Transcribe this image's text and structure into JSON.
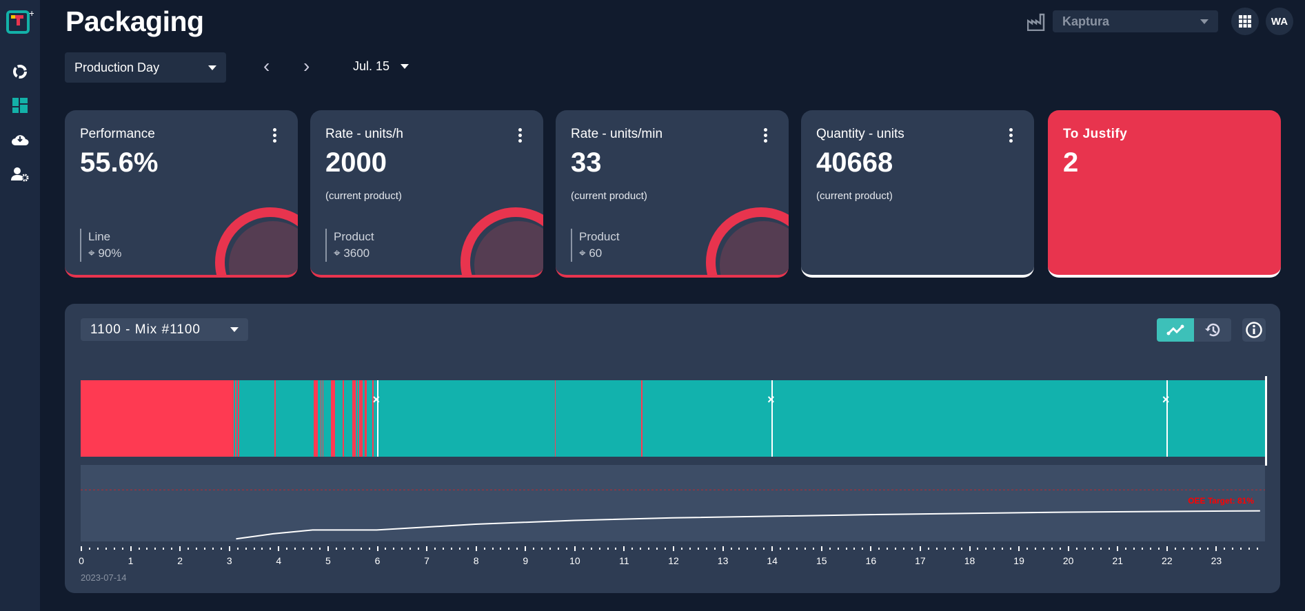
{
  "app": {
    "title": "Packaging",
    "logo": "tracker-plus-logo"
  },
  "sidebar": {
    "items": [
      {
        "icon": "oee-ring-icon",
        "active": false
      },
      {
        "icon": "dashboard-icon",
        "active": true
      },
      {
        "icon": "cloud-download-icon",
        "active": false
      },
      {
        "icon": "user-settings-icon",
        "active": false
      }
    ]
  },
  "toolbar": {
    "period": "Production Day",
    "date": "Jul. 15",
    "prev": "‹",
    "next": "›"
  },
  "header": {
    "site": "Kaptura",
    "avatar": "WA",
    "factory_icon": "factory-icon",
    "apps_icon": "grid-icon"
  },
  "cards": [
    {
      "title": "Performance",
      "value": "55.6%",
      "subtitle": "",
      "ref_label": "Line",
      "ref_value": "90%"
    },
    {
      "title": "Rate - units/h",
      "value": "2000",
      "subtitle": "(current product)",
      "ref_label": "Product",
      "ref_value": "3600"
    },
    {
      "title": "Rate - units/min",
      "value": "33",
      "subtitle": "(current product)",
      "ref_label": "Product",
      "ref_value": "60"
    },
    {
      "title": "Quantity - units",
      "value": "40668",
      "subtitle": "(current product)"
    },
    {
      "title": "To Justify",
      "value": "2"
    }
  ],
  "colors": {
    "running": "#12b2ad",
    "stopped": "#fe3a52",
    "accent": "#e8344e",
    "target": "#ff0000"
  },
  "panel": {
    "product": "1100 - Mix #1100",
    "date_label": "2023-07-14",
    "target_label": "OEE Target: 81%"
  },
  "chart_data": {
    "type": "line",
    "x_unit": "hour",
    "xlim": [
      0,
      24
    ],
    "x_ticks": [
      0,
      1,
      2,
      3,
      4,
      5,
      6,
      7,
      8,
      9,
      10,
      11,
      12,
      13,
      14,
      15,
      16,
      17,
      18,
      19,
      20,
      21,
      22,
      23
    ],
    "target": 81,
    "ylim": [
      0,
      120
    ],
    "series": [
      {
        "x": [
          3.15,
          3.9,
          4.7,
          6,
          8,
          10,
          12,
          16,
          20,
          23.9
        ],
        "y": [
          4,
          12,
          18,
          18,
          27,
          33,
          37,
          42,
          46,
          48
        ]
      }
    ],
    "state_timeline": {
      "stopped_intervals": [
        [
          0,
          3.1
        ],
        [
          3.13,
          3.15
        ],
        [
          3.18,
          3.21
        ],
        [
          3.93,
          3.95
        ],
        [
          4.72,
          4.81
        ],
        [
          4.86,
          4.88
        ],
        [
          4.9,
          4.91
        ],
        [
          5.07,
          5.15
        ],
        [
          5.31,
          5.33
        ],
        [
          5.5,
          5.58
        ],
        [
          5.6,
          5.61
        ],
        [
          5.64,
          5.71
        ],
        [
          5.75,
          5.8
        ],
        [
          5.91,
          5.93
        ],
        [
          9.61,
          9.63
        ],
        [
          11.36,
          11.38
        ]
      ],
      "markers": [
        6.0,
        14.0,
        22.0
      ]
    }
  }
}
